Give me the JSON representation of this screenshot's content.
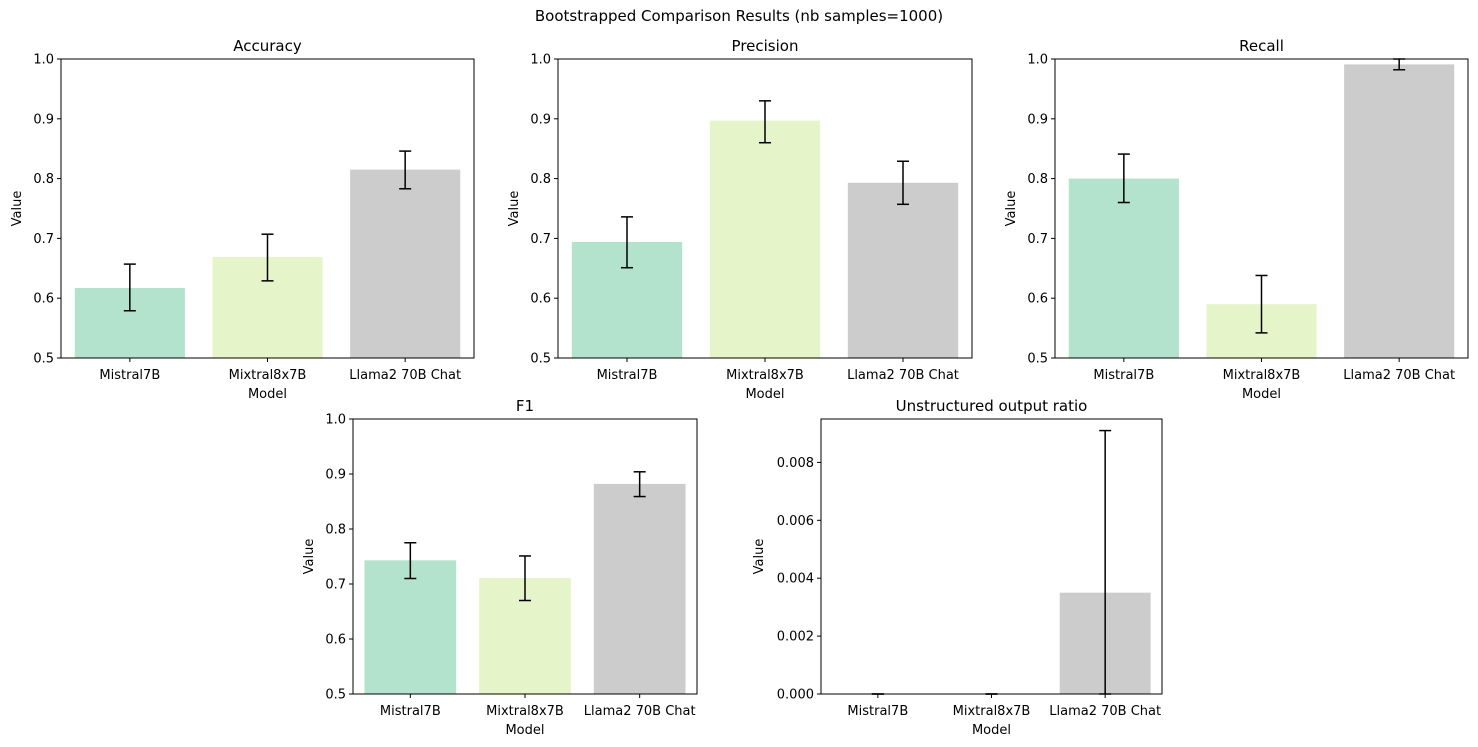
{
  "figure": {
    "title": "Bootstrapped Comparison Results (nb samples=1000)"
  },
  "colors": {
    "Mistral7B": "#b3e2cd",
    "Mixtral8x7B": "#e6f5c9",
    "Llama2 70B Chat": "#cccccc"
  },
  "chart_data": [
    {
      "type": "bar",
      "title": "Accuracy",
      "xlabel": "Model",
      "ylabel": "Value",
      "categories": [
        "Mistral7B",
        "Mixtral8x7B",
        "Llama2 70B Chat"
      ],
      "values": [
        0.617,
        0.669,
        0.815
      ],
      "error_low": [
        0.579,
        0.629,
        0.783
      ],
      "error_high": [
        0.657,
        0.707,
        0.846
      ],
      "ylim": [
        0.5,
        1.0
      ],
      "yticks": [
        "0.5",
        "0.6",
        "0.7",
        "0.8",
        "0.9",
        "1.0"
      ],
      "grid": false
    },
    {
      "type": "bar",
      "title": "Precision",
      "xlabel": "Model",
      "ylabel": "Value",
      "categories": [
        "Mistral7B",
        "Mixtral8x7B",
        "Llama2 70B Chat"
      ],
      "values": [
        0.694,
        0.897,
        0.793
      ],
      "error_low": [
        0.651,
        0.86,
        0.757
      ],
      "error_high": [
        0.736,
        0.93,
        0.829
      ],
      "ylim": [
        0.5,
        1.0
      ],
      "yticks": [
        "0.5",
        "0.6",
        "0.7",
        "0.8",
        "0.9",
        "1.0"
      ],
      "grid": false
    },
    {
      "type": "bar",
      "title": "Recall",
      "xlabel": "Model",
      "ylabel": "Value",
      "categories": [
        "Mistral7B",
        "Mixtral8x7B",
        "Llama2 70B Chat"
      ],
      "values": [
        0.8,
        0.59,
        0.991
      ],
      "error_low": [
        0.76,
        0.542,
        0.982
      ],
      "error_high": [
        0.841,
        0.638,
        1.0
      ],
      "ylim": [
        0.5,
        1.0
      ],
      "yticks": [
        "0.5",
        "0.6",
        "0.7",
        "0.8",
        "0.9",
        "1.0"
      ],
      "grid": false
    },
    {
      "type": "bar",
      "title": "F1",
      "xlabel": "Model",
      "ylabel": "Value",
      "categories": [
        "Mistral7B",
        "Mixtral8x7B",
        "Llama2 70B Chat"
      ],
      "values": [
        0.743,
        0.711,
        0.882
      ],
      "error_low": [
        0.71,
        0.67,
        0.859
      ],
      "error_high": [
        0.775,
        0.751,
        0.904
      ],
      "ylim": [
        0.5,
        1.0
      ],
      "yticks": [
        "0.5",
        "0.6",
        "0.7",
        "0.8",
        "0.9",
        "1.0"
      ],
      "grid": false
    },
    {
      "type": "bar",
      "title": "Unstructured output ratio",
      "xlabel": "Model",
      "ylabel": "Value",
      "categories": [
        "Mistral7B",
        "Mixtral8x7B",
        "Llama2 70B Chat"
      ],
      "values": [
        0.0,
        0.0,
        0.0035
      ],
      "error_low": [
        0.0,
        0.0,
        0.0
      ],
      "error_high": [
        0.0,
        0.0,
        0.0091
      ],
      "ylim": [
        0.0,
        0.0095
      ],
      "yticks": [
        "0.000",
        "0.002",
        "0.004",
        "0.006",
        "0.008"
      ],
      "grid": false
    }
  ]
}
